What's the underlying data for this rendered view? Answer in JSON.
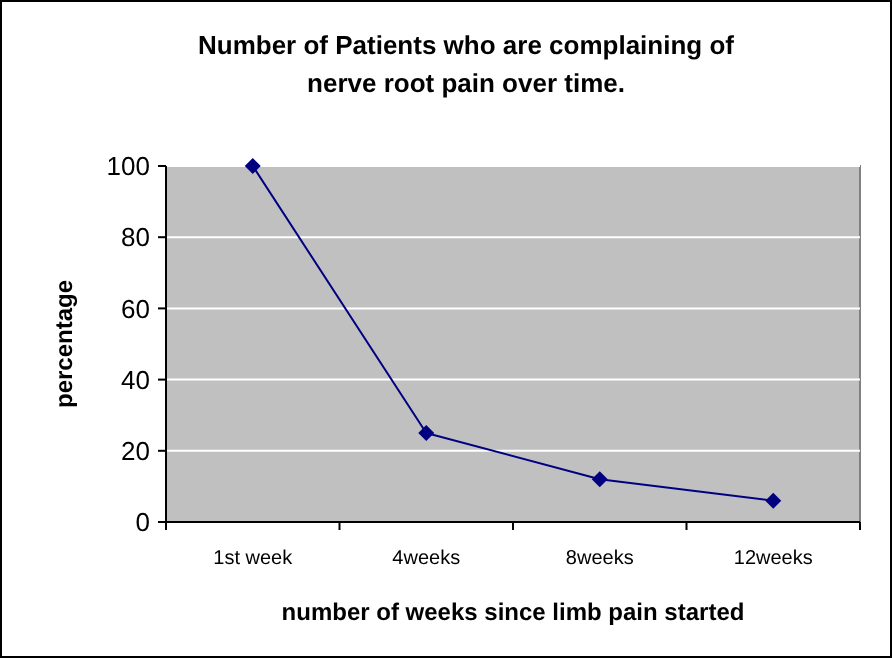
{
  "chart_data": {
    "type": "line",
    "title": "Number of Patients who are complaining of nerve root pain over time.",
    "xlabel": "number of weeks since limb pain started",
    "ylabel": "percentage",
    "categories": [
      "1st week",
      "4weeks",
      "8weeks",
      "12weeks"
    ],
    "series": [
      {
        "color": "#000080",
        "values": [
          100,
          25,
          12,
          6
        ]
      }
    ],
    "ylim": [
      0,
      100
    ],
    "yticks": [
      0,
      20,
      40,
      60,
      80,
      100
    ],
    "grid": "y",
    "marker": "diamond"
  }
}
